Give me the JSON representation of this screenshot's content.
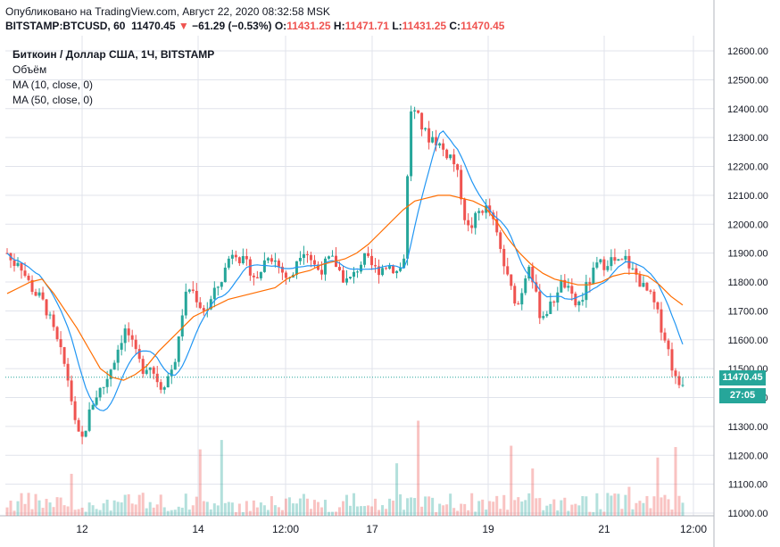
{
  "header": {
    "published": "Опубликовано на TradingView.com, Август 22, 2020 08:32:58 MSK",
    "symbol": "BITSTAMP:BTCUSD, 60",
    "last": "11470.45",
    "arrow": "▼",
    "change": "−61.29 (−0.53%)",
    "o_label": "O:",
    "o_value": "11431.25",
    "h_label": "H:",
    "h_value": "11471.71",
    "l_label": "L:",
    "l_value": "11431.25",
    "c_label": "C:",
    "c_value": "11470.45"
  },
  "legend": {
    "title": "Биткоин / Доллар США, 1Ч, BITSTAMP",
    "volume": "Объём",
    "ma10": "MA (10, close, 0)",
    "ma50": "MA (50, close, 0)"
  },
  "price_box": {
    "value": "11470.45",
    "countdown": "27:05"
  },
  "colors": {
    "up": "#26a69a",
    "down": "#ef5350",
    "ma10": "#2196f3",
    "ma50": "#ff6d00",
    "grid": "#e0e3eb",
    "last_line": "#26a69a"
  },
  "chart_data": {
    "type": "candlestick",
    "ylim": [
      11000,
      12650
    ],
    "ticks": [
      "12600.00",
      "12500.00",
      "12400.00",
      "12300.00",
      "12200.00",
      "12100.00",
      "12000.00",
      "11900.00",
      "11800.00",
      "11700.00",
      "11600.00",
      "11500.00",
      "11400.00",
      "11300.00",
      "11200.00",
      "11100.00",
      "11000.00"
    ],
    "x_labels": [
      "12",
      "14",
      "12:00",
      "17",
      "19",
      "21",
      "12:00"
    ],
    "close_path": [
      11900,
      11860,
      11880,
      11830,
      11790,
      11760,
      11740,
      11700,
      11640,
      11580,
      11520,
      11440,
      11300,
      11240,
      11310,
      11380,
      11420,
      11440,
      11490,
      11540,
      11600,
      11640,
      11580,
      11530,
      11500,
      11520,
      11480,
      11440,
      11460,
      11500,
      11560,
      11720,
      11780,
      11760,
      11720,
      11700,
      11740,
      11780,
      11820,
      11880,
      11920,
      11880,
      11860,
      11840,
      11800,
      11860,
      11900,
      11880,
      11850,
      11820,
      11800,
      11880,
      11920,
      11900,
      11860,
      11840,
      11860,
      11880,
      11860,
      11820,
      11800,
      11820,
      11860,
      11880,
      11860,
      11840,
      11850,
      11860,
      11850,
      11830,
      11900,
      12400,
      12380,
      12340,
      12300,
      12300,
      12280,
      12250,
      12240,
      12200,
      12100,
      11980,
      12000,
      12040,
      12060,
      12040,
      11980,
      11900,
      11820,
      11760,
      11720,
      11800,
      11880,
      11760,
      11680,
      11700,
      11720,
      11780,
      11800,
      11760,
      11720,
      11730,
      11780,
      11820,
      11860,
      11860,
      11880,
      11870,
      11860,
      11880,
      11840,
      11820,
      11780,
      11760,
      11720,
      11660,
      11600,
      11520,
      11440,
      11460
    ],
    "ma50_path": [
      11760,
      11780,
      11800,
      11810,
      11760,
      11700,
      11640,
      11570,
      11500,
      11470,
      11460,
      11480,
      11510,
      11560,
      11600,
      11640,
      11680,
      11700,
      11720,
      11740,
      11750,
      11760,
      11770,
      11780,
      11810,
      11830,
      11840,
      11860,
      11870,
      11880,
      11900,
      11930,
      11970,
      12010,
      12050,
      12080,
      12090,
      12100,
      12100,
      12090,
      12080,
      12060,
      12010,
      11950,
      11900,
      11860,
      11830,
      11810,
      11800,
      11790,
      11790,
      11800,
      11820,
      11830,
      11830,
      11820,
      11790,
      11750,
      11720
    ],
    "last_price": 11470.45
  }
}
